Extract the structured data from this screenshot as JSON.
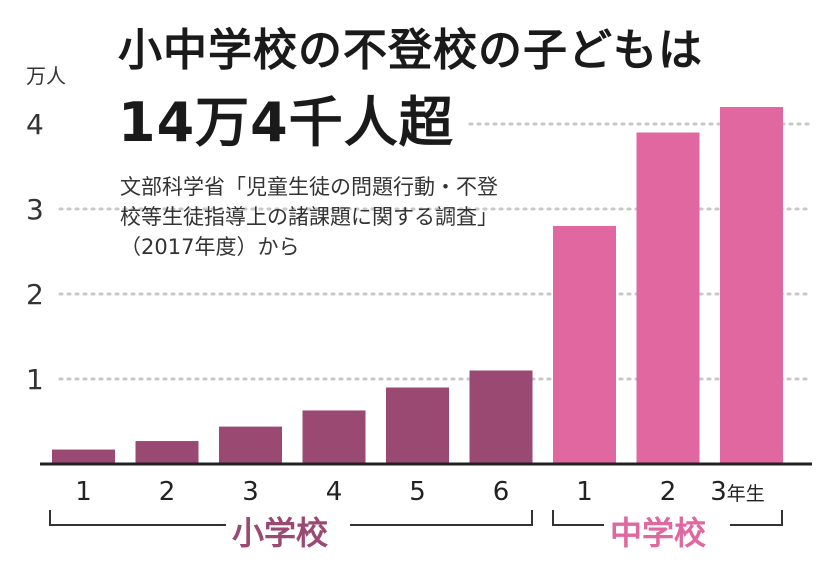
{
  "title_line1": "小中学校の不登校の子どもは",
  "title_line2": "14万4千人超",
  "unit": "万人",
  "note": "文部科学省「児童生徒の問題行動・不登校等生徒指導上の諸課題に関する調査」（2017年度）から",
  "colors": {
    "primary": "#9a4a72",
    "middle": "#e0679f",
    "grid": "#c8c8c8",
    "axis": "#222222"
  },
  "chart_data": {
    "type": "bar",
    "categories": [
      "1",
      "2",
      "3",
      "4",
      "5",
      "6",
      "1",
      "2",
      "3年生"
    ],
    "groups": [
      {
        "label": "小学校",
        "start": 0,
        "end": 5,
        "color": "#9a4a72"
      },
      {
        "label": "中学校",
        "start": 6,
        "end": 8,
        "color": "#e0679f"
      }
    ],
    "values": [
      0.17,
      0.27,
      0.44,
      0.63,
      0.9,
      1.1,
      2.8,
      3.9,
      4.2
    ],
    "y_ticks": [
      1,
      2,
      3,
      4
    ],
    "ylim": [
      0,
      4.4
    ],
    "grid": true,
    "grid_style": "dotted"
  }
}
